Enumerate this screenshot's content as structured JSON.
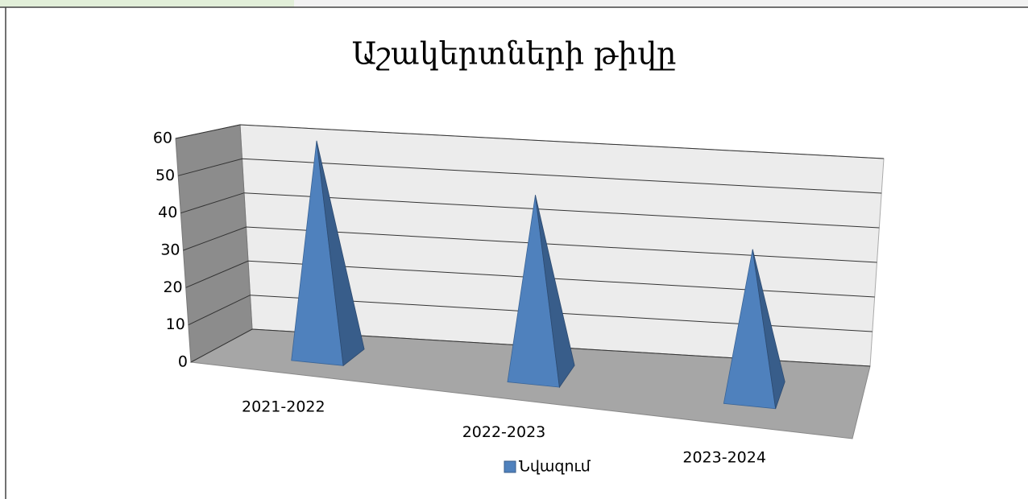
{
  "chart_data": {
    "type": "pyramid3d",
    "title": "Աշակերտների թիվը",
    "categories": [
      "2021-2022",
      "2022-2023",
      "2023-2024"
    ],
    "series": [
      {
        "name": "Նվազում",
        "color": "#4f81bd",
        "values": [
          60,
          50,
          40
        ]
      }
    ],
    "ylim": [
      0,
      60
    ],
    "yticks": [
      0,
      10,
      20,
      30,
      40,
      50,
      60
    ],
    "grid": true,
    "legend": "bottom"
  }
}
